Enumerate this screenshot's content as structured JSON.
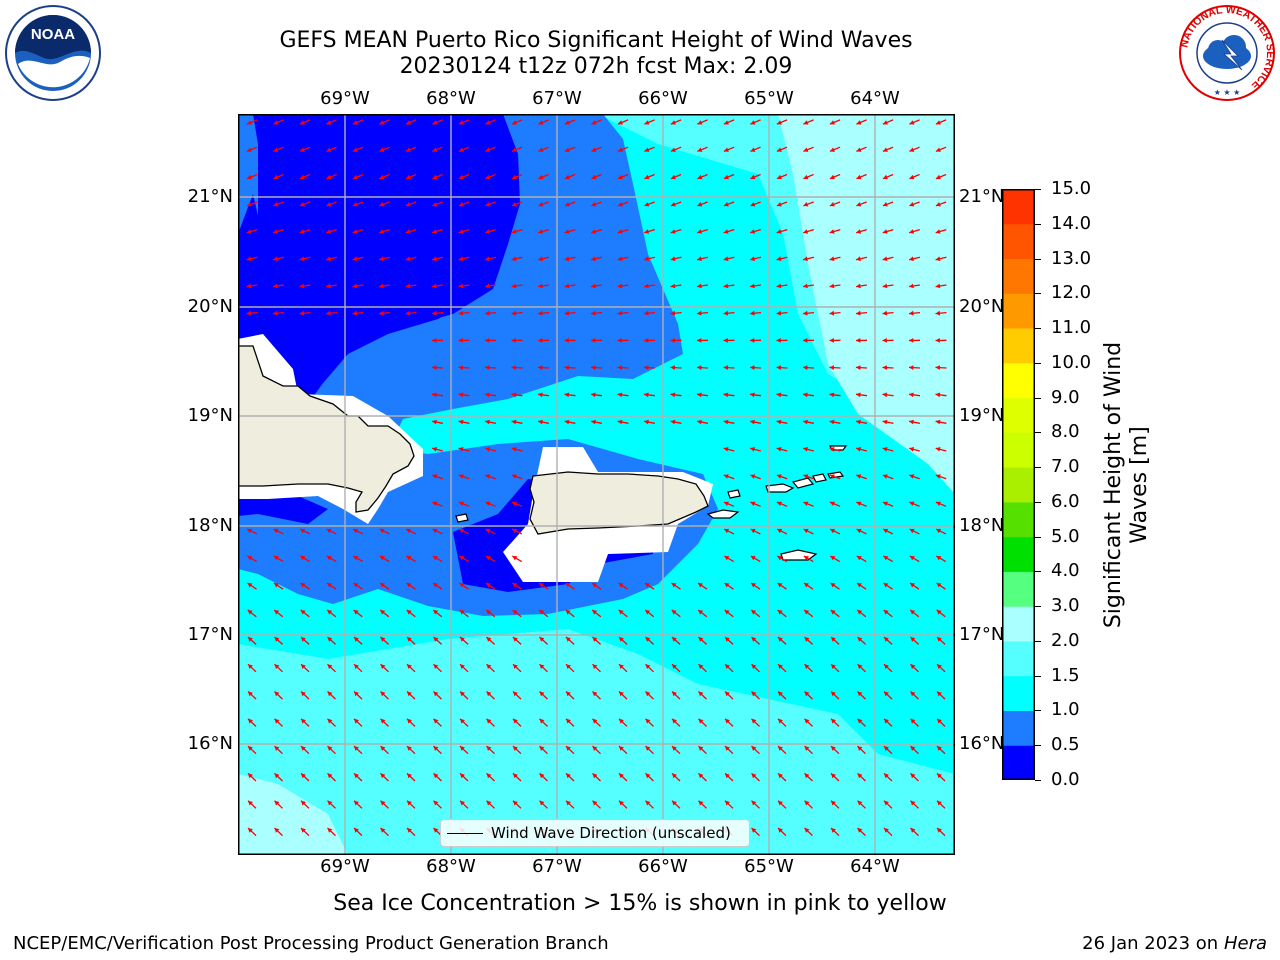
{
  "header": {
    "title": "GEFS MEAN Puerto Rico Significant Height of Wind Waves",
    "subtitle": "20230124 t12z 072h fcst   Max: 2.09"
  },
  "logos": {
    "noaa": {
      "text": "NOAA"
    },
    "nws": {
      "ring_text": "NATIONAL WEATHER SERVICE"
    }
  },
  "map": {
    "lon_labels": [
      "69°W",
      "68°W",
      "67°W",
      "66°W",
      "65°W",
      "64°W"
    ],
    "lat_labels": [
      "21°N",
      "20°N",
      "19°N",
      "18°N",
      "17°N",
      "16°N"
    ],
    "extent": {
      "lon": [
        -70.0,
        -63.25
      ],
      "lat": [
        15.0,
        21.75
      ]
    },
    "legend_label": "Wind Wave Direction (unscaled)",
    "colors": {
      "land": "#efedde",
      "arrow": "#ff0000"
    }
  },
  "colorbar": {
    "label": "Significant Height of Wind Waves [m]",
    "label_lines": [
      "Significant Height of Wind",
      "Waves [m]"
    ],
    "ticks": [
      "0.0",
      "0.5",
      "1.0",
      "1.5",
      "2.0",
      "3.0",
      "4.0",
      "5.0",
      "6.0",
      "7.0",
      "8.0",
      "9.0",
      "10.0",
      "11.0",
      "12.0",
      "13.0",
      "14.0",
      "15.0"
    ],
    "colors": [
      "#0000ff",
      "#1e7cff",
      "#00ffff",
      "#55ffff",
      "#aaffff",
      "#55ff80",
      "#00e000",
      "#55e000",
      "#aaee00",
      "#ccff00",
      "#ddff00",
      "#ffff00",
      "#ffcc00",
      "#ff9900",
      "#ff7700",
      "#ff5500",
      "#ff3300",
      "#ff0000"
    ]
  },
  "caption": "Sea Ice Concentration > 15% is shown in pink to yellow",
  "footer": {
    "left": "NCEP/EMC/Verification Post Processing Product Generation Branch",
    "right_date": "26 Jan 2023 on ",
    "right_host": "Hera"
  }
}
